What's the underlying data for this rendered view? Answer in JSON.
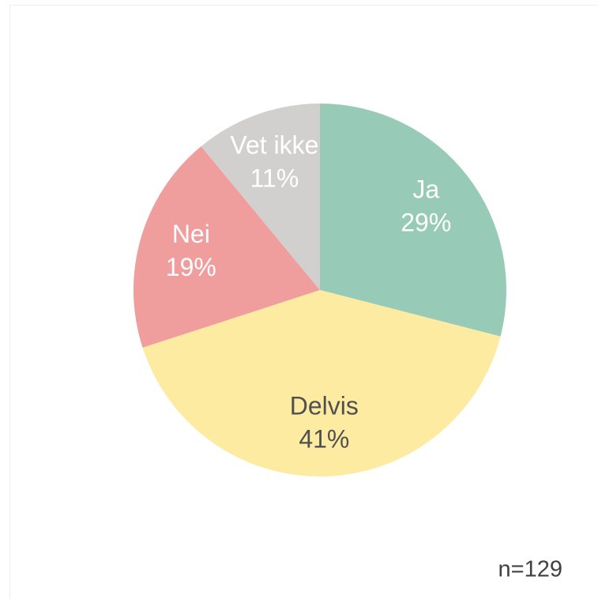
{
  "chart_data": {
    "type": "pie",
    "categories": [
      "Ja",
      "Delvis",
      "Nei",
      "Vet ikke"
    ],
    "values": [
      29,
      41,
      19,
      11
    ],
    "value_labels": [
      "29%",
      "41%",
      "19%",
      "11%"
    ],
    "colors": [
      "#97cbb7",
      "#fdeba1",
      "#f09d9e",
      "#d2d0cf"
    ],
    "label_colors": [
      "#ffffff",
      "#505050",
      "#ffffff",
      "#ffffff"
    ],
    "annotation": "n=129"
  }
}
